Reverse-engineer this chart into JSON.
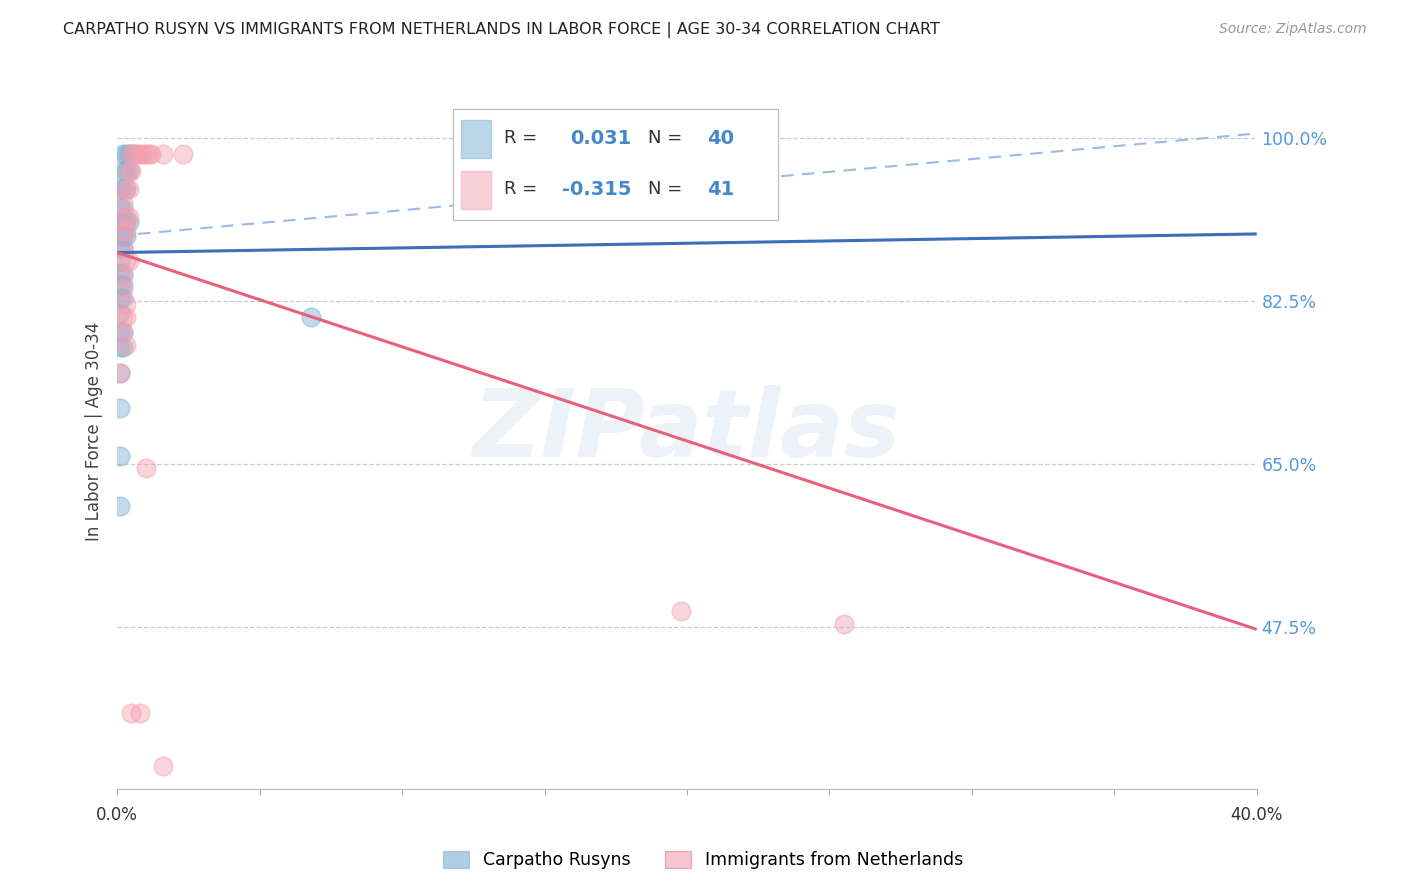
{
  "title": "CARPATHO RUSYN VS IMMIGRANTS FROM NETHERLANDS IN LABOR FORCE | AGE 30-34 CORRELATION CHART",
  "source": "Source: ZipAtlas.com",
  "ylabel": "In Labor Force | Age 30-34",
  "ytick_labels": [
    "100.0%",
    "82.5%",
    "65.0%",
    "47.5%"
  ],
  "ytick_values": [
    1.0,
    0.825,
    0.65,
    0.475
  ],
  "xlim": [
    0.0,
    0.4
  ],
  "ylim": [
    0.3,
    1.07
  ],
  "legend_R1": "0.031",
  "legend_N1": "40",
  "legend_R2": "-0.315",
  "legend_N2": "41",
  "blue_color": "#7BAFD4",
  "pink_color": "#F4A0B0",
  "blue_line_color": "#3B6EBB",
  "pink_line_color": "#E8607A",
  "dashed_line_color": "#99BBE8",
  "watermark": "ZIPatlas",
  "blue_scatter": [
    [
      0.002,
      0.983
    ],
    [
      0.003,
      0.983
    ],
    [
      0.004,
      0.983
    ],
    [
      0.005,
      0.983
    ],
    [
      0.006,
      0.983
    ],
    [
      0.002,
      0.965
    ],
    [
      0.003,
      0.965
    ],
    [
      0.004,
      0.965
    ],
    [
      0.001,
      0.945
    ],
    [
      0.002,
      0.945
    ],
    [
      0.003,
      0.945
    ],
    [
      0.001,
      0.925
    ],
    [
      0.002,
      0.925
    ],
    [
      0.001,
      0.91
    ],
    [
      0.002,
      0.91
    ],
    [
      0.003,
      0.91
    ],
    [
      0.004,
      0.91
    ],
    [
      0.001,
      0.895
    ],
    [
      0.002,
      0.895
    ],
    [
      0.003,
      0.895
    ],
    [
      0.001,
      0.882
    ],
    [
      0.002,
      0.882
    ],
    [
      0.001,
      0.868
    ],
    [
      0.001,
      0.855
    ],
    [
      0.002,
      0.855
    ],
    [
      0.001,
      0.842
    ],
    [
      0.002,
      0.842
    ],
    [
      0.001,
      0.828
    ],
    [
      0.002,
      0.828
    ],
    [
      0.001,
      0.812
    ],
    [
      0.001,
      0.792
    ],
    [
      0.002,
      0.792
    ],
    [
      0.001,
      0.775
    ],
    [
      0.002,
      0.775
    ],
    [
      0.001,
      0.748
    ],
    [
      0.001,
      0.71
    ],
    [
      0.001,
      0.658
    ],
    [
      0.068,
      0.808
    ],
    [
      0.001,
      0.605
    ]
  ],
  "pink_scatter": [
    [
      0.005,
      0.983
    ],
    [
      0.006,
      0.983
    ],
    [
      0.007,
      0.983
    ],
    [
      0.008,
      0.983
    ],
    [
      0.009,
      0.983
    ],
    [
      0.01,
      0.983
    ],
    [
      0.011,
      0.983
    ],
    [
      0.012,
      0.983
    ],
    [
      0.016,
      0.983
    ],
    [
      0.023,
      0.983
    ],
    [
      0.004,
      0.965
    ],
    [
      0.005,
      0.965
    ],
    [
      0.003,
      0.945
    ],
    [
      0.004,
      0.945
    ],
    [
      0.002,
      0.93
    ],
    [
      0.003,
      0.915
    ],
    [
      0.004,
      0.915
    ],
    [
      0.002,
      0.9
    ],
    [
      0.003,
      0.9
    ],
    [
      0.002,
      0.882
    ],
    [
      0.003,
      0.868
    ],
    [
      0.004,
      0.868
    ],
    [
      0.002,
      0.852
    ],
    [
      0.002,
      0.838
    ],
    [
      0.003,
      0.822
    ],
    [
      0.002,
      0.808
    ],
    [
      0.003,
      0.808
    ],
    [
      0.002,
      0.792
    ],
    [
      0.003,
      0.778
    ],
    [
      0.001,
      0.748
    ],
    [
      0.01,
      0.645
    ],
    [
      0.255,
      0.478
    ],
    [
      0.005,
      0.382
    ],
    [
      0.008,
      0.382
    ],
    [
      0.016,
      0.325
    ],
    [
      0.198,
      0.492
    ]
  ],
  "blue_line": {
    "x0": 0.0,
    "y0": 0.877,
    "x1": 0.4,
    "y1": 0.897
  },
  "dash_line": {
    "x0": 0.0,
    "y0": 0.895,
    "x1": 0.4,
    "y1": 1.005
  },
  "pink_line": {
    "x0": 0.0,
    "y0": 0.877,
    "x1": 0.4,
    "y1": 0.472
  }
}
